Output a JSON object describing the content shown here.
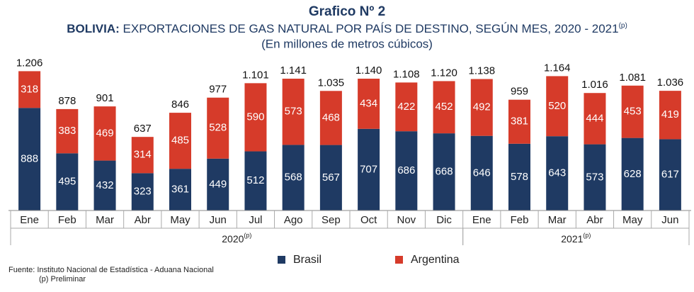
{
  "chart_data": {
    "type": "bar",
    "stacked": true,
    "title": "Grafico Nº 2",
    "subtitle": {
      "bold": "BOLIVIA:",
      "text": "EXPORTACIONES DE GAS NATURAL POR PAÍS DE DESTINO, SEGÚN MES, 2020 - 2021",
      "sup": "(p)"
    },
    "unit_label": "(En millones de metros cúbicos)",
    "categories": [
      "Ene",
      "Feb",
      "Mar",
      "Abr",
      "May",
      "Jun",
      "Jul",
      "Ago",
      "Sep",
      "Oct",
      "Nov",
      "Dic",
      "Ene",
      "Feb",
      "Mar",
      "Abr",
      "May",
      "Jun"
    ],
    "groups": [
      {
        "label": "2020",
        "sup": "(p)"
      },
      {
        "label": "2021",
        "sup": "(p)"
      }
    ],
    "series": [
      {
        "name": "Brasil",
        "color": "#1f3a63",
        "values": [
          888,
          495,
          432,
          323,
          361,
          449,
          512,
          568,
          567,
          707,
          686,
          668,
          646,
          578,
          643,
          573,
          628,
          617
        ]
      },
      {
        "name": "Argentina",
        "color": "#d63b2a",
        "values": [
          318,
          383,
          469,
          314,
          485,
          528,
          590,
          573,
          468,
          434,
          422,
          452,
          492,
          381,
          520,
          444,
          453,
          419
        ]
      }
    ],
    "totals": {
      "values": [
        1206,
        878,
        901,
        637,
        846,
        977,
        1101,
        1141,
        1035,
        1140,
        1108,
        1120,
        1138,
        959,
        1164,
        1016,
        1081,
        1036
      ],
      "value_labels": [
        "1.206",
        "878",
        "901",
        "637",
        "846",
        "977",
        "1.101",
        "1.141",
        "1.035",
        "1.140",
        "1.108",
        "1.120",
        "1.138",
        "959",
        "1.164",
        "1.016",
        "1.081",
        "1.036"
      ]
    },
    "source": "Fuente: Instituto Nacional de Estadística - Aduana Nacional",
    "note": "(p) Preliminar"
  }
}
